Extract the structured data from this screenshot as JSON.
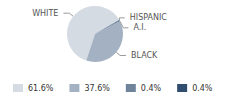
{
  "chart_data": {
    "type": "pie",
    "categories": [
      "WHITE",
      "BLACK",
      "A.I.",
      "HISPANIC"
    ],
    "values": [
      61.6,
      37.6,
      0.4,
      0.4
    ],
    "value_labels": [
      "61.6%",
      "37.6%",
      "0.4%",
      "0.4%"
    ],
    "colors": [
      "#d5dbe3",
      "#a3b1c2",
      "#6f849c",
      "#2f4d6e"
    ],
    "legend": "bottom"
  }
}
